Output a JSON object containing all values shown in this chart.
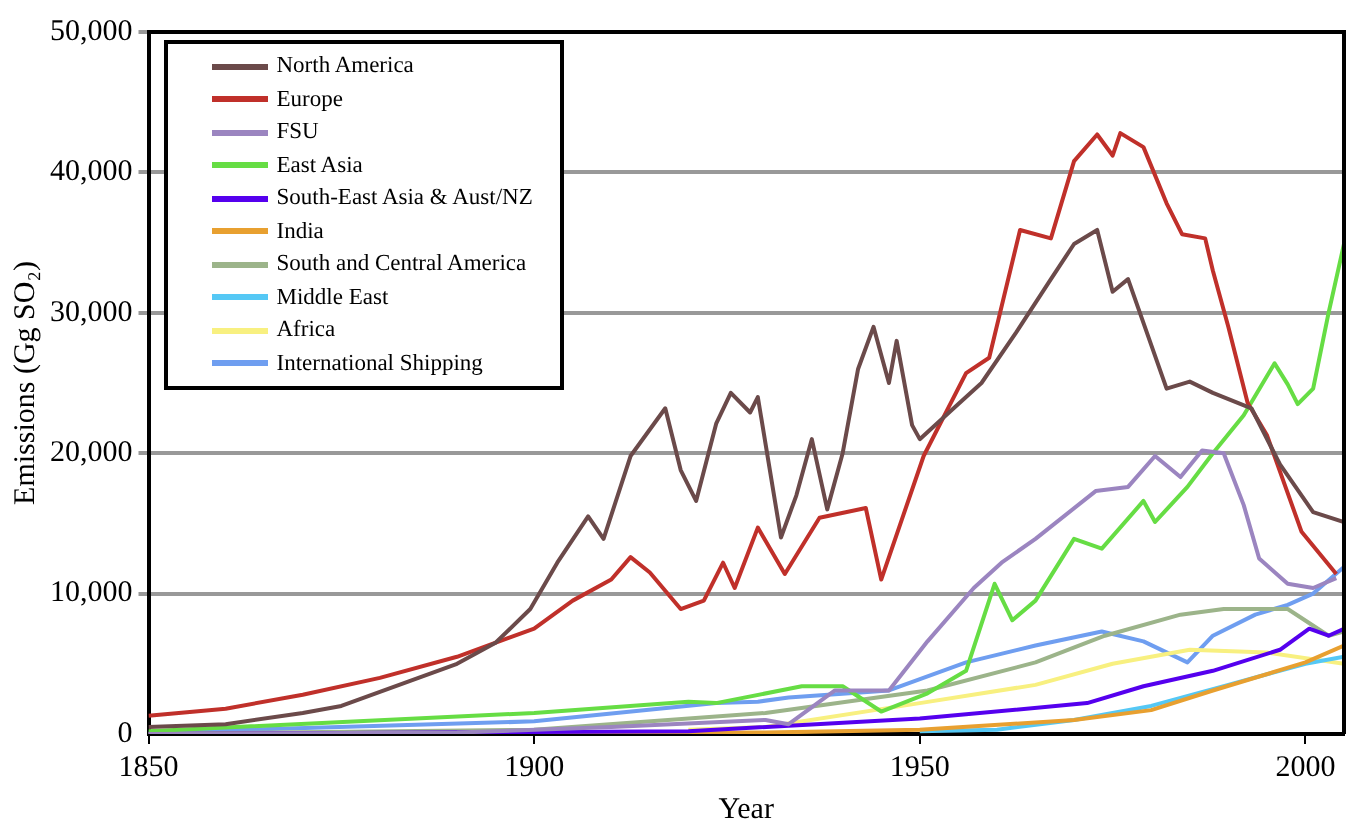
{
  "chart_data": {
    "type": "line",
    "xlabel": "Year",
    "ylabel": "Emissions (Gg SO₂)",
    "xlim": [
      1850,
      2005
    ],
    "xticks": [
      1850,
      1900,
      1950,
      2000
    ],
    "ylim": [
      0,
      50000
    ],
    "yticks": [
      {
        "value": 0,
        "label": "0"
      },
      {
        "value": 10000,
        "label": "10,000"
      },
      {
        "value": 20000,
        "label": "20,000"
      },
      {
        "value": 30000,
        "label": "30,000"
      },
      {
        "value": 40000,
        "label": "40,000"
      },
      {
        "value": 50000,
        "label": "50,000"
      }
    ],
    "grid": "y",
    "legend": "top left",
    "marker": "none",
    "line_style": "solid",
    "series": [
      {
        "name": "North America",
        "color": "#6b4a4a",
        "x": [
          1850,
          1860,
          1870,
          1875,
          1880,
          1885,
          1890,
          1895,
          1899.5,
          1903,
          1907,
          1909,
          1912.5,
          1917,
          1919,
          1921,
          1923.6,
          1925.5,
          1928,
          1929,
          1932,
          1934,
          1936,
          1938,
          1940,
          1942,
          1944,
          1945,
          1946,
          1947,
          1949,
          1950,
          1954,
          1958,
          1962.5,
          1967,
          1970,
          1973,
          1975,
          1977,
          1982,
          1985,
          1988,
          1993,
          1996.7,
          2001,
          2005
        ],
        "values": [
          500,
          700,
          1500,
          2000,
          3000,
          4000,
          5000,
          6500,
          8900,
          12200,
          15500,
          13900,
          19800,
          23200,
          18800,
          16600,
          22100,
          24300,
          22900,
          24000,
          14000,
          17000,
          21000,
          16000,
          20000,
          26000,
          29000,
          27000,
          25000,
          28000,
          22000,
          21000,
          23000,
          25000,
          28600,
          32400,
          34900,
          35900,
          31500,
          32400,
          24600,
          25100,
          24300,
          23200,
          19200,
          15800,
          15100
        ]
      },
      {
        "name": "Europe",
        "color": "#c0302a",
        "x": [
          1850,
          1860,
          1870,
          1880,
          1890,
          1900,
          1905,
          1910,
          1912.5,
          1915,
          1919,
          1922,
          1924.5,
          1926,
          1929,
          1932.5,
          1937,
          1943,
          1945,
          1950.5,
          1956,
          1959,
          1963,
          1967,
          1970,
          1973,
          1975,
          1976,
          1979,
          1982,
          1984,
          1987,
          1988,
          1990,
          1992.5,
          1995,
          1999.5,
          2004
        ],
        "values": [
          1300,
          1800,
          2800,
          4000,
          5500,
          7500,
          9500,
          11000,
          12600,
          11500,
          8900,
          9500,
          12200,
          10400,
          14700,
          11400,
          15400,
          16100,
          11000,
          19800,
          25700,
          26800,
          35900,
          35300,
          40800,
          42700,
          41200,
          42800,
          41800,
          37800,
          35600,
          35300,
          33000,
          29000,
          23600,
          21300,
          14400,
          11400
        ]
      },
      {
        "name": "FSU",
        "color": "#9b85c0",
        "x": [
          1850,
          1890,
          1910,
          1930,
          1933,
          1939,
          1946,
          1951,
          1957,
          1960.6,
          1965,
          1972.8,
          1977,
          1980.5,
          1983.8,
          1986.6,
          1989.4,
          1992,
          1994,
          1997.7,
          2001,
          2004
        ],
        "values": [
          0,
          100,
          500,
          1000,
          700,
          3100,
          3100,
          6600,
          10400,
          12200,
          13900,
          17300,
          17600,
          19800,
          18300,
          20200,
          20000,
          16300,
          12500,
          10700,
          10400,
          11100
        ]
      },
      {
        "name": "East Asia",
        "color": "#66dd44",
        "x": [
          1850,
          1900,
          1920,
          1923.6,
          1934.7,
          1940,
          1945,
          1951,
          1956,
          1959.7,
          1962,
          1965,
          1970,
          1973.6,
          1979,
          1980.5,
          1984.7,
          1988,
          1992,
          1996,
          1997.7,
          1999,
          2001,
          2003,
          2005
        ],
        "values": [
          200,
          1500,
          2300,
          2200,
          3400,
          3400,
          1600,
          2900,
          4500,
          10700,
          8100,
          9500,
          13900,
          13200,
          16600,
          15100,
          17600,
          20000,
          22700,
          26400,
          24900,
          23500,
          24600,
          30000,
          34900
        ]
      },
      {
        "name": "South-East Asia & Aust/NZ",
        "color": "#5500ee",
        "x": [
          1850,
          1920,
          1950,
          1971.7,
          1979,
          1988,
          1996.7,
          2000.5,
          2003,
          2005
        ],
        "values": [
          0,
          200,
          1100,
          2200,
          3400,
          4500,
          6000,
          7500,
          7000,
          7500
        ]
      },
      {
        "name": "India",
        "color": "#e8a030",
        "x": [
          1850,
          1930,
          1950,
          1970,
          1980,
          1988,
          2000,
          2005
        ],
        "values": [
          0,
          100,
          300,
          1000,
          1700,
          3100,
          5100,
          6300
        ]
      },
      {
        "name": "South and Central America",
        "color": "#9cb48a",
        "x": [
          1850,
          1900,
          1930,
          1951,
          1965,
          1974,
          1983.8,
          1989.4,
          1997.7,
          2003,
          2005
        ],
        "values": [
          0,
          300,
          1500,
          3100,
          5100,
          7000,
          8500,
          8900,
          8900,
          7000,
          7300
        ]
      },
      {
        "name": "Middle East",
        "color": "#55c8f5",
        "x": [
          1950,
          1960,
          1970,
          1980,
          1990,
          2000,
          2005
        ],
        "values": [
          200,
          300,
          1000,
          2000,
          3500,
          5000,
          5500
        ]
      },
      {
        "name": "Africa",
        "color": "#f8f080",
        "x": [
          1920,
          1930,
          1950,
          1965,
          1975,
          1985,
          1995,
          2005
        ],
        "values": [
          300,
          500,
          2200,
          3500,
          5000,
          6000,
          5800,
          5000
        ]
      },
      {
        "name": "International Shipping",
        "color": "#6f9ef0",
        "x": [
          1850,
          1900,
          1923.6,
          1929,
          1933,
          1946,
          1956,
          1965,
          1973.6,
          1979,
          1984.7,
          1988,
          1993.5,
          1997.7,
          2001,
          2005
        ],
        "values": [
          100,
          900,
          2200,
          2300,
          2600,
          3100,
          5100,
          6300,
          7300,
          6600,
          5100,
          7000,
          8500,
          9200,
          10000,
          11900
        ]
      }
    ]
  }
}
